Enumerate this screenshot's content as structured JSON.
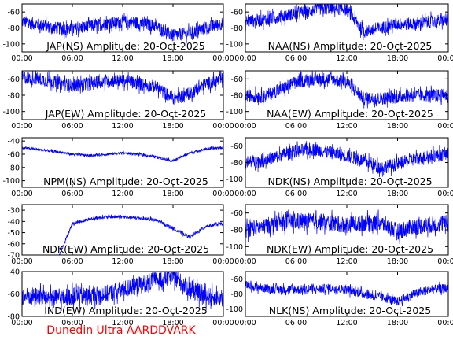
{
  "footer": {
    "credit": "Dunedin Ultra AARDDVARK",
    "credit_color": "#ff0000"
  },
  "colors": {
    "trace": "#0000ff",
    "axes": "#000000",
    "background": "#ffffff"
  },
  "chart_data": [
    {
      "type": "line",
      "title": "JAP(NS) Amplitude: 20-Oct-2025",
      "x": [
        "00:00",
        "02:00",
        "04:00",
        "06:00",
        "08:00",
        "10:00",
        "12:00",
        "14:00",
        "16:00",
        "18:00",
        "20:00",
        "22:00",
        "24:00"
      ],
      "series": [
        {
          "values": [
            -72,
            -76,
            -80,
            -82,
            -78,
            -75,
            -72,
            -74,
            -78,
            -90,
            -86,
            -80,
            -74
          ],
          "noise": 8
        }
      ],
      "xticks": [
        "00:00",
        "06:00",
        "12:00",
        "18:00",
        "00:00"
      ],
      "yticks": [
        -60,
        -80,
        -100
      ],
      "ylim": [
        -110,
        -50
      ]
    },
    {
      "type": "line",
      "title": "NAA(NS) Amplitude: 20-Oct-2025",
      "x": [
        "00:00",
        "02:00",
        "04:00",
        "06:00",
        "08:00",
        "10:00",
        "12:00",
        "14:00",
        "16:00",
        "18:00",
        "20:00",
        "22:00",
        "24:00"
      ],
      "series": [
        {
          "values": [
            -72,
            -70,
            -66,
            -62,
            -58,
            -55,
            -57,
            -85,
            -80,
            -75,
            -75,
            -72,
            -70
          ],
          "noise": 8
        }
      ],
      "xticks": [
        "00:00",
        "06:00",
        "12:00",
        "18:00",
        "00:00"
      ],
      "yticks": [
        -60,
        -80,
        -100
      ],
      "ylim": [
        -110,
        -50
      ]
    },
    {
      "type": "line",
      "title": "JAP(EW) Amplitude: 20-Oct-2025",
      "x": [
        "00:00",
        "02:00",
        "04:00",
        "06:00",
        "08:00",
        "10:00",
        "12:00",
        "14:00",
        "16:00",
        "18:00",
        "20:00",
        "22:00",
        "24:00"
      ],
      "series": [
        {
          "values": [
            -58,
            -60,
            -64,
            -68,
            -66,
            -62,
            -62,
            -66,
            -70,
            -84,
            -78,
            -66,
            -60
          ],
          "noise": 8
        }
      ],
      "xticks": [
        "00:00",
        "06:00",
        "12:00",
        "18:00",
        "00:00"
      ],
      "yticks": [
        -60,
        -80,
        -100
      ],
      "ylim": [
        -110,
        -50
      ]
    },
    {
      "type": "line",
      "title": "NAA(EW) Amplitude: 20-Oct-2025",
      "x": [
        "00:00",
        "02:00",
        "04:00",
        "06:00",
        "08:00",
        "10:00",
        "12:00",
        "14:00",
        "16:00",
        "18:00",
        "20:00",
        "22:00",
        "24:00"
      ],
      "series": [
        {
          "values": [
            -80,
            -82,
            -74,
            -64,
            -60,
            -60,
            -64,
            -84,
            -84,
            -82,
            -80,
            -80,
            -80
          ],
          "noise": 8
        }
      ],
      "xticks": [
        "00:00",
        "06:00",
        "12:00",
        "18:00",
        "00:00"
      ],
      "yticks": [
        -60,
        -80,
        -100
      ],
      "ylim": [
        -110,
        -50
      ]
    },
    {
      "type": "line",
      "title": "NPM(NS) Amplitude: 20-Oct-2025",
      "x": [
        "00:00",
        "02:00",
        "04:00",
        "06:00",
        "08:00",
        "10:00",
        "12:00",
        "14:00",
        "16:00",
        "18:00",
        "20:00",
        "22:00",
        "24:00"
      ],
      "series": [
        {
          "values": [
            -50,
            -53,
            -56,
            -60,
            -62,
            -60,
            -58,
            -60,
            -64,
            -70,
            -58,
            -52,
            -50
          ],
          "noise": 2
        }
      ],
      "xticks": [
        "00:00",
        "06:00",
        "12:00",
        "18:00",
        "00:00"
      ],
      "yticks": [
        -40,
        -60,
        -80,
        -100
      ],
      "ylim": [
        -110,
        -35
      ]
    },
    {
      "type": "line",
      "title": "NDK(NS) Amplitude: 20-Oct-2025",
      "x": [
        "00:00",
        "02:00",
        "04:00",
        "06:00",
        "08:00",
        "10:00",
        "12:00",
        "14:00",
        "16:00",
        "18:00",
        "20:00",
        "22:00",
        "24:00"
      ],
      "series": [
        {
          "values": [
            -80,
            -78,
            -72,
            -66,
            -64,
            -68,
            -72,
            -78,
            -86,
            -82,
            -76,
            -72,
            -70
          ],
          "noise": 8
        }
      ],
      "xticks": [
        "00:00",
        "06:00",
        "12:00",
        "18:00",
        "00:00"
      ],
      "yticks": [
        -60,
        -80,
        -100
      ],
      "ylim": [
        -110,
        -50
      ]
    },
    {
      "type": "line",
      "title": "NDK(EW) Amplitude: 20-Oct-2025",
      "x": [
        "00:00",
        "02:00",
        "04:00",
        "06:00",
        "08:00",
        "10:00",
        "12:00",
        "14:00",
        "16:00",
        "18:00",
        "20:00",
        "22:00",
        "24:00"
      ],
      "series": [
        {
          "values": [
            -75,
            -72,
            -78,
            -42,
            -38,
            -36,
            -36,
            -37,
            -39,
            -46,
            -54,
            -44,
            -42
          ],
          "noise": 1.5
        }
      ],
      "xticks": [
        "00:00",
        "06:00",
        "12:00",
        "18:00",
        "00:00"
      ],
      "yticks": [
        -30,
        -40,
        -50,
        -60,
        -70
      ],
      "ylim": [
        -70,
        -25
      ]
    },
    {
      "type": "line",
      "title": "NDK(EW) Amplitude: 20-Oct-2025",
      "x": [
        "00:00",
        "02:00",
        "04:00",
        "06:00",
        "08:00",
        "10:00",
        "12:00",
        "14:00",
        "16:00",
        "18:00",
        "20:00",
        "22:00",
        "24:00"
      ],
      "series": [
        {
          "values": [
            -80,
            -76,
            -72,
            -70,
            -70,
            -72,
            -74,
            -72,
            -72,
            -82,
            -76,
            -74,
            -72
          ],
          "noise": 10
        }
      ],
      "xticks": [
        "00:00",
        "06:00",
        "12:00",
        "18:00",
        "00:00"
      ],
      "yticks": [
        -60,
        -80,
        -100
      ],
      "ylim": [
        -110,
        -50
      ]
    },
    {
      "type": "line",
      "title": "IND(EW) Amplitude: 20-Oct-2025",
      "x": [
        "00:00",
        "02:00",
        "04:00",
        "06:00",
        "08:00",
        "10:00",
        "12:00",
        "14:00",
        "16:00",
        "18:00",
        "20:00",
        "22:00",
        "24:00"
      ],
      "series": [
        {
          "values": [
            -62,
            -62,
            -64,
            -62,
            -62,
            -60,
            -56,
            -52,
            -48,
            -44,
            -56,
            -62,
            -64
          ],
          "noise": 8
        }
      ],
      "xticks": [
        "00:00",
        "06:00",
        "12:00",
        "18:00",
        "00:00"
      ],
      "yticks": [
        -40,
        -60,
        -80
      ],
      "ylim": [
        -80,
        -40
      ]
    },
    {
      "type": "line",
      "title": "NLK(NS) Amplitude: 20-Oct-2025",
      "x": [
        "00:00",
        "02:00",
        "04:00",
        "06:00",
        "08:00",
        "10:00",
        "12:00",
        "14:00",
        "16:00",
        "18:00",
        "20:00",
        "22:00",
        "24:00"
      ],
      "series": [
        {
          "values": [
            -68,
            -72,
            -74,
            -74,
            -74,
            -72,
            -74,
            -80,
            -84,
            -90,
            -80,
            -74,
            -72
          ],
          "noise": 6
        }
      ],
      "xticks": [
        "00:00",
        "06:00",
        "12:00",
        "18:00",
        "00:00"
      ],
      "yticks": [
        -60,
        -80,
        -100
      ],
      "ylim": [
        -110,
        -50
      ]
    }
  ]
}
